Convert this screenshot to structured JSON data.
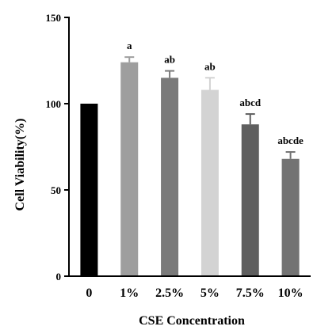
{
  "chart_data": {
    "type": "bar",
    "title": "",
    "xlabel": "CSE Concentration",
    "ylabel": "Cell Viability(%)",
    "ylim": [
      0,
      150
    ],
    "yticks": [
      0,
      50,
      100,
      150
    ],
    "grid": false,
    "legend": "none",
    "categories": [
      "0",
      "1%",
      "2.5%",
      "5%",
      "7.5%",
      "10%"
    ],
    "values": [
      100,
      124,
      115,
      108,
      88,
      68
    ],
    "errors": [
      0,
      3,
      4,
      7,
      6,
      4
    ],
    "annotations": [
      "",
      "a",
      "ab",
      "ab",
      "abcd",
      "abcde"
    ],
    "colors": [
      "#000000",
      "#9e9e9e",
      "#7a7a7a",
      "#d3d3d3",
      "#5f5f5f",
      "#737373"
    ]
  }
}
